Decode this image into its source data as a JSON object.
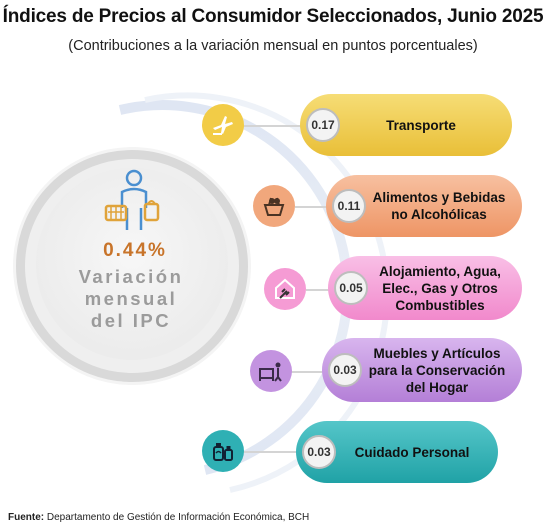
{
  "title": "Índices de Precios al Consumidor Seleccionados, Junio 2025",
  "subtitle": "(Contribuciones a la variación mensual en puntos porcentuales)",
  "center": {
    "value": "0.44%",
    "label_line1": "Variación",
    "label_line2": "mensual",
    "label_line3": "del IPC"
  },
  "footer": {
    "source_label": "Fuente:",
    "source_text": "Departamento de Gestión de Información Económica, BCH"
  },
  "colors": {
    "transporte": "#f2cc47",
    "alimentos": "#f1a77c",
    "alojamiento": "#f59bd4",
    "muebles": "#c393e0",
    "cuidado": "#2fb0b4"
  },
  "icons": [
    "shopping-person-icon",
    "airplane-icon",
    "grocery-basket-icon",
    "house-plug-icon",
    "furniture-icon",
    "personal-care-icon"
  ],
  "chart_data": {
    "type": "bar",
    "title": "Índices de Precios al Consumidor Seleccionados, Junio 2025",
    "subtitle": "(Contribuciones a la variación mensual en puntos porcentuales)",
    "total": 0.44,
    "categories": [
      "Transporte",
      "Alimentos y Bebidas no Alcohólicas",
      "Alojamiento, Agua, Elec., Gas y Otros Combustibles",
      "Muebles y Artículos para la Conservación del Hogar",
      "Cuidado Personal"
    ],
    "values": [
      0.17,
      0.11,
      0.05,
      0.03,
      0.03
    ],
    "value_labels": [
      "0.17",
      "0.11",
      "0.05",
      "0.03",
      "0.03"
    ]
  }
}
